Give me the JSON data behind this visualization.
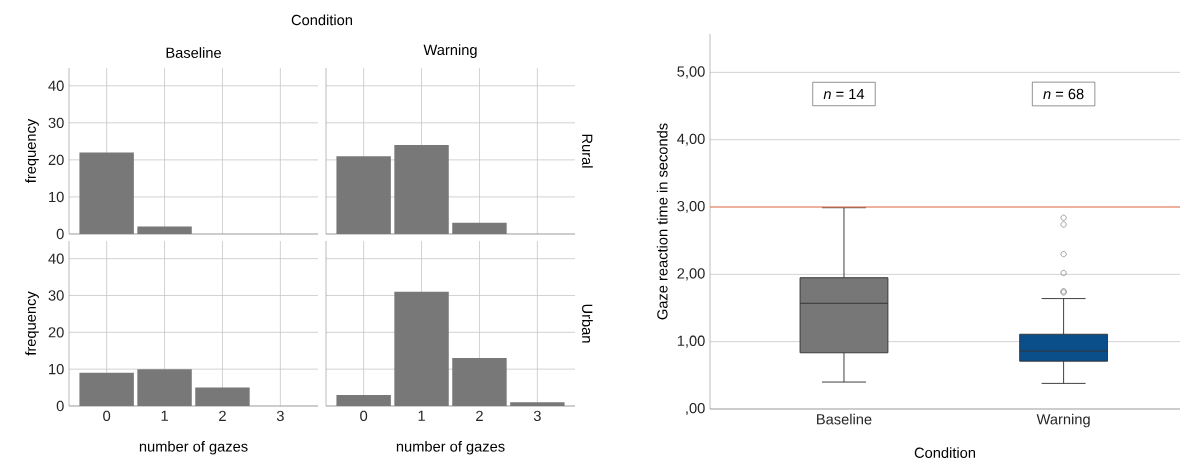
{
  "chart_data": [
    {
      "type": "bar",
      "title": "Baseline",
      "ylabel": "frequency",
      "annotations": [
        "Condition"
      ],
      "x": [
        0,
        1,
        2,
        3
      ],
      "values": [
        22,
        2,
        0,
        0
      ],
      "color": "#787878",
      "xlim": [
        -0.65,
        3.65
      ],
      "ylim": [
        0,
        44.8
      ],
      "xticks": [
        0,
        1,
        2,
        3
      ],
      "yticks": [
        0,
        10,
        20,
        30,
        40
      ],
      "grid": true,
      "tick_labels": "y"
    },
    {
      "type": "bar",
      "title": "Warning",
      "annotations": [
        "Rural"
      ],
      "x": [
        0,
        1,
        2,
        3
      ],
      "values": [
        21,
        24,
        3,
        0
      ],
      "color": "#787878",
      "xlim": [
        -0.65,
        3.65
      ],
      "ylim": [
        0,
        44.8
      ],
      "xticks": [
        0,
        1,
        2,
        3
      ],
      "yticks": [
        0,
        10,
        20,
        30,
        40
      ],
      "grid": true,
      "tick_labels": false
    },
    {
      "type": "bar",
      "xlabel": "number of gazes",
      "ylabel": "frequency",
      "x": [
        0,
        1,
        2,
        3
      ],
      "values": [
        9,
        10,
        5,
        0
      ],
      "color": "#787878",
      "xlim": [
        -0.65,
        3.65
      ],
      "ylim": [
        0,
        44.8
      ],
      "xticks": [
        0,
        1,
        2,
        3
      ],
      "yticks": [
        0,
        10,
        20,
        30,
        40
      ],
      "grid": true
    },
    {
      "type": "bar",
      "xlabel": "number of gazes",
      "annotations": [
        "Urban"
      ],
      "x": [
        0,
        1,
        2,
        3
      ],
      "values": [
        3,
        31,
        13,
        1
      ],
      "color": "#787878",
      "xlim": [
        -0.65,
        3.65
      ],
      "ylim": [
        0,
        44.8
      ],
      "xticks": [
        0,
        1,
        2,
        3
      ],
      "yticks": [
        0,
        10,
        20,
        30,
        40
      ],
      "grid": true,
      "tick_labels": "x"
    },
    {
      "type": "box",
      "xlabel": "Condition",
      "ylabel": "Gaze reaction time in seconds",
      "categories": [
        "Baseline",
        "Warning"
      ],
      "colors": [
        "#777777",
        "#0b4f8a"
      ],
      "boxes": [
        {
          "low": 0.4,
          "q1": 0.835,
          "median": 1.57,
          "q3": 1.95,
          "high": 2.99
        },
        {
          "low": 0.38,
          "q1": 0.71,
          "median": 0.86,
          "q3": 1.11,
          "high": 1.64,
          "outliers": [
            1.73,
            1.75,
            2.02,
            2.3,
            2.74,
            2.84
          ]
        }
      ],
      "annotations": [
        "*n* = 14",
        "*n* = 68"
      ],
      "ref_lines": [
        {
          "axis": "y",
          "value": 3,
          "color": "#f07850"
        }
      ],
      "ylim": [
        0,
        5.57
      ],
      "yticks": [
        {
          "value": 0,
          "label": ",00"
        },
        {
          "value": 1,
          "label": "1,00"
        },
        {
          "value": 2,
          "label": "2,00"
        },
        {
          "value": 3,
          "label": "3,00"
        },
        {
          "value": 4,
          "label": "4,00"
        },
        {
          "value": 5,
          "label": "5,00"
        }
      ],
      "grid": "y"
    }
  ]
}
